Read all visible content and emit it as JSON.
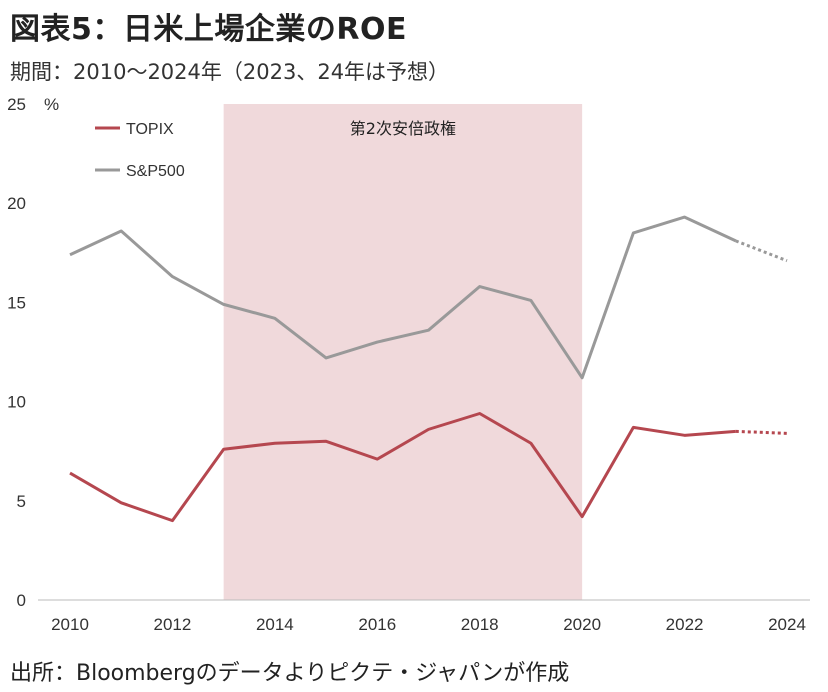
{
  "title": "図表5：日米上場企業のROE",
  "subtitle": "期間：2010～2024年（2023、24年は予想）",
  "source": "出所：Bloombergのデータよりピクテ・ジャパンが作成",
  "chart_data": {
    "type": "line",
    "x": [
      2010,
      2011,
      2012,
      2013,
      2014,
      2015,
      2016,
      2017,
      2018,
      2019,
      2020,
      2021,
      2022,
      2023,
      2024
    ],
    "xticks": [
      "2010",
      "2012",
      "2014",
      "2016",
      "2018",
      "2020",
      "2022",
      "2024"
    ],
    "yticks": [
      "0",
      "5",
      "10",
      "15",
      "20",
      "25"
    ],
    "yunit": "%",
    "ylim": [
      0,
      25
    ],
    "xlim": [
      2010,
      2024
    ],
    "grid": false,
    "legend_position": "top-left",
    "forecast_from": 2023,
    "shaded_region": {
      "label": "第2次安倍政権",
      "from": 2013,
      "to": 2020,
      "color": "#f0d9db"
    },
    "series": [
      {
        "name": "TOPIX",
        "color": "#b5474f",
        "values": [
          6.4,
          4.9,
          4.0,
          7.6,
          7.9,
          8.0,
          7.1,
          8.6,
          9.4,
          7.9,
          4.2,
          8.7,
          8.3,
          8.5,
          8.4
        ]
      },
      {
        "name": "S&P500",
        "color": "#999999",
        "values": [
          17.4,
          18.6,
          16.3,
          14.9,
          14.2,
          12.2,
          13.0,
          13.6,
          15.8,
          15.1,
          11.2,
          18.5,
          19.3,
          18.1,
          17.1
        ]
      }
    ]
  }
}
